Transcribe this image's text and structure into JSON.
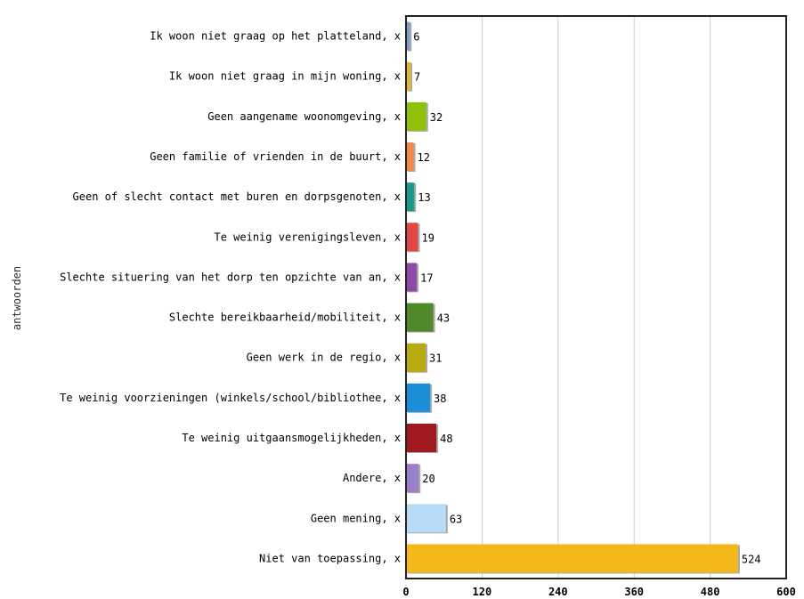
{
  "chart_data": {
    "type": "bar",
    "orientation": "horizontal",
    "ylabel": "antwoorden",
    "xlim": [
      0,
      600
    ],
    "xticks": [
      0,
      120,
      240,
      360,
      480,
      600
    ],
    "grid": true,
    "legend": "none",
    "categories": [
      "Ik woon niet graag op het platteland, x",
      "Ik woon niet graag in mijn woning, x",
      "Geen aangename woonomgeving, x",
      "Geen familie of vrienden in de buurt, x",
      "Geen of slecht contact met buren en dorpsgenoten, x",
      "Te weinig verenigingsleven, x",
      "Slechte situering van het dorp ten opzichte van an, x",
      "Slechte bereikbaarheid/mobiliteit, x",
      "Geen werk in de regio, x",
      "Te weinig voorzieningen (winkels/school/bibliothee, x",
      "Te weinig uitgaansmogelijkheden, x",
      "Andere, x",
      "Geen mening, x",
      "Niet van toepassing, x"
    ],
    "values": [
      6,
      7,
      32,
      12,
      13,
      19,
      17,
      43,
      31,
      38,
      48,
      20,
      63,
      524
    ],
    "colors": [
      "#7f9fc9",
      "#e8b820",
      "#8fc00a",
      "#f5894a",
      "#1a9a8a",
      "#e04848",
      "#8f4aa8",
      "#4f8a2a",
      "#b8aa10",
      "#1a8fd8",
      "#a01820",
      "#9a80c8",
      "#b8dcf8",
      "#f5b81a"
    ]
  }
}
